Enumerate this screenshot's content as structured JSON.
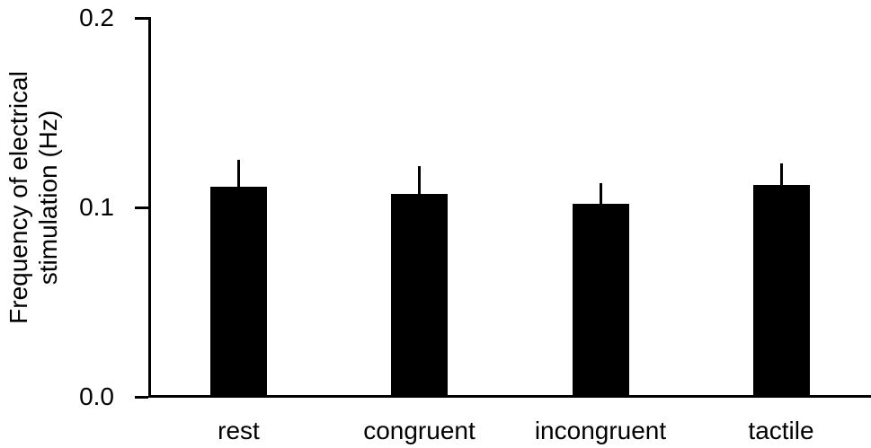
{
  "chart_data": {
    "type": "bar",
    "title": "",
    "categories": [
      "rest",
      "congruent",
      "incongruent",
      "tactile"
    ],
    "values": [
      0.111,
      0.107,
      0.102,
      0.112
    ],
    "errors_upper": [
      0.014,
      0.015,
      0.011,
      0.011
    ],
    "ylabel_line1": "Frequency of electrical",
    "ylabel_line2": "stimulation (Hz)",
    "ytick_labels": [
      "0.0",
      "0.1",
      "0.2"
    ],
    "yticks": [
      0.0,
      0.1,
      0.2
    ],
    "ylim": [
      0.0,
      0.2
    ],
    "xlabel": "",
    "bar_color": "#000000",
    "error_bar_style": "upper-only-no-cap",
    "grid": false,
    "legend": "none"
  }
}
